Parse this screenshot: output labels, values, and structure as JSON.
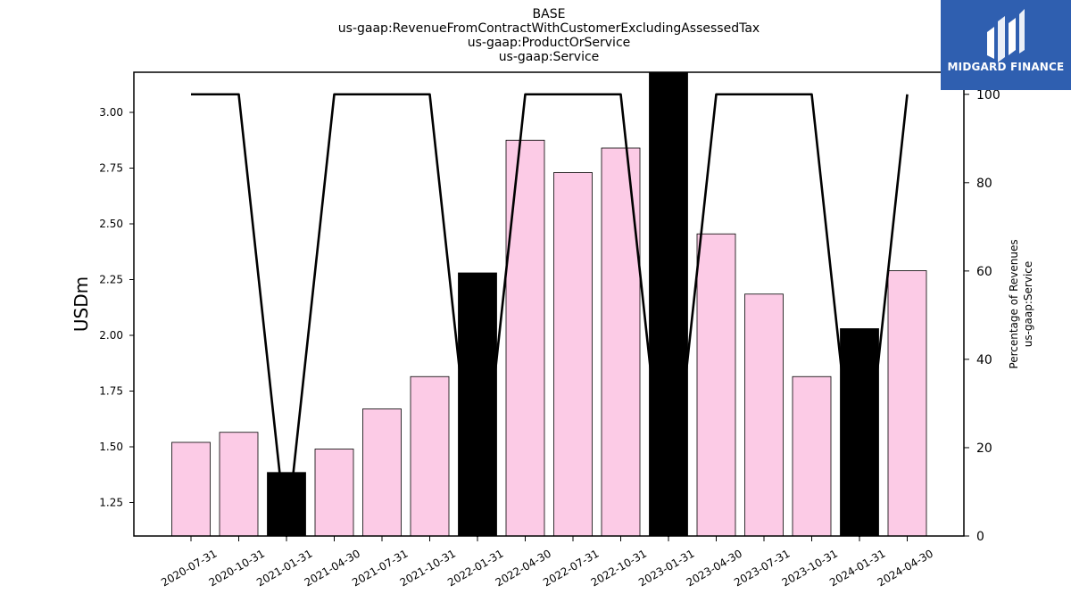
{
  "chart_data": {
    "type": "bar",
    "title_lines": [
      "BASE",
      "us-gaap:RevenueFromContractWithCustomerExcludingAssessedTax",
      "us-gaap:ProductOrService",
      "us-gaap:Service"
    ],
    "ylabel": "USDm",
    "y2label_lines": [
      "Percentage of Revenues",
      "us-gaap:Service"
    ],
    "categories": [
      "2020-07-31",
      "2020-10-31",
      "2021-01-31",
      "2021-04-30",
      "2021-07-31",
      "2021-10-31",
      "2022-01-31",
      "2022-04-30",
      "2022-07-31",
      "2022-10-31",
      "2023-01-31",
      "2023-04-30",
      "2023-07-31",
      "2023-10-31",
      "2024-01-31",
      "2024-04-30"
    ],
    "series": [
      {
        "type": "bar",
        "values": [
          1.52,
          1.565,
          1.385,
          1.49,
          1.67,
          1.815,
          2.28,
          2.875,
          2.73,
          2.84,
          3.18,
          2.455,
          2.185,
          1.815,
          2.03,
          2.29
        ],
        "colors": [
          "#fccbe6",
          "#fccbe6",
          "#000000",
          "#fccbe6",
          "#fccbe6",
          "#fccbe6",
          "#000000",
          "#fccbe6",
          "#fccbe6",
          "#fccbe6",
          "#000000",
          "#fccbe6",
          "#fccbe6",
          "#fccbe6",
          "#000000",
          "#fccbe6"
        ]
      },
      {
        "type": "line",
        "axis": "right",
        "values": [
          100,
          100,
          0,
          100,
          100,
          100,
          0,
          100,
          100,
          100,
          0,
          100,
          100,
          100,
          0,
          100
        ],
        "color": "#000000"
      }
    ],
    "ylim": [
      1.1,
      3.18
    ],
    "yticks": [
      1.25,
      1.5,
      1.75,
      2.0,
      2.25,
      2.5,
      2.75,
      3.0
    ],
    "y2lim": [
      0,
      105
    ],
    "y2ticks": [
      0,
      20,
      40,
      60,
      80,
      100
    ],
    "grid": false,
    "colors": {
      "highlight": "#000000",
      "bar": "#fccbe6"
    }
  },
  "logo": {
    "text": "MIDGARD FINANCE",
    "color": "#2f5fb0"
  }
}
